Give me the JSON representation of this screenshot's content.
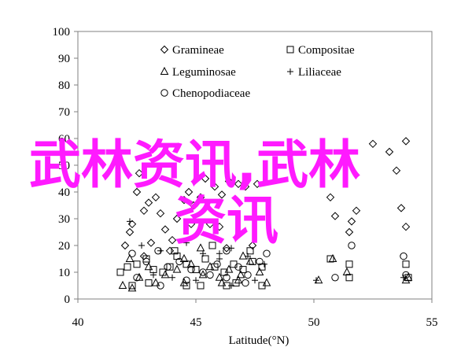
{
  "chart_data": {
    "type": "scatter",
    "xlabel": "Latitude(°N)",
    "ylabel": "",
    "xlim": [
      40,
      55
    ],
    "ylim": [
      0,
      100
    ],
    "xticks": [
      40,
      45,
      50,
      55
    ],
    "yticks": [
      0,
      10,
      20,
      30,
      40,
      50,
      60,
      70,
      80,
      90,
      100
    ],
    "grid": false,
    "legend_position": "top-center",
    "series": [
      {
        "name": "Gramineae",
        "marker": "diamond",
        "points": [
          [
            42.2,
            25
          ],
          [
            42.3,
            28
          ],
          [
            42.8,
            33
          ],
          [
            43.0,
            36
          ],
          [
            43.3,
            38
          ],
          [
            42.5,
            40
          ],
          [
            42.6,
            47
          ],
          [
            43.5,
            32
          ],
          [
            43.7,
            26
          ],
          [
            44.2,
            30
          ],
          [
            44.5,
            37
          ],
          [
            44.7,
            40
          ],
          [
            44.9,
            35
          ],
          [
            45.2,
            38
          ],
          [
            45.4,
            45
          ],
          [
            45.8,
            42
          ],
          [
            46.1,
            39
          ],
          [
            46.4,
            44
          ],
          [
            46.8,
            43
          ],
          [
            47.1,
            42
          ],
          [
            47.6,
            43
          ],
          [
            43.1,
            21
          ],
          [
            44.0,
            22
          ],
          [
            44.8,
            28
          ],
          [
            45.6,
            28
          ],
          [
            46.0,
            27
          ],
          [
            42.0,
            20
          ],
          [
            42.8,
            16
          ],
          [
            43.9,
            18
          ],
          [
            46.3,
            19
          ],
          [
            47.4,
            20
          ],
          [
            50.7,
            38
          ],
          [
            50.9,
            31
          ],
          [
            51.6,
            29
          ],
          [
            51.8,
            33
          ],
          [
            51.5,
            25
          ],
          [
            53.9,
            27
          ],
          [
            53.7,
            34
          ],
          [
            53.5,
            48
          ],
          [
            53.9,
            59
          ],
          [
            52.5,
            58
          ],
          [
            53.2,
            55
          ]
        ]
      },
      {
        "name": "Compositae",
        "marker": "square",
        "points": [
          [
            41.8,
            10
          ],
          [
            42.1,
            12
          ],
          [
            42.5,
            13
          ],
          [
            42.9,
            15
          ],
          [
            43.2,
            11
          ],
          [
            43.6,
            10
          ],
          [
            43.9,
            12
          ],
          [
            44.2,
            16
          ],
          [
            44.6,
            13
          ],
          [
            45.0,
            11
          ],
          [
            45.4,
            15
          ],
          [
            45.8,
            12
          ],
          [
            46.2,
            10
          ],
          [
            46.6,
            13
          ],
          [
            47.0,
            11
          ],
          [
            47.4,
            14
          ],
          [
            47.8,
            12
          ],
          [
            42.3,
            5
          ],
          [
            43.0,
            6
          ],
          [
            44.6,
            5
          ],
          [
            45.2,
            5
          ],
          [
            46.3,
            5
          ],
          [
            46.7,
            6
          ],
          [
            47.8,
            5
          ],
          [
            50.7,
            15
          ],
          [
            51.5,
            13
          ],
          [
            51.5,
            8
          ],
          [
            53.9,
            13
          ],
          [
            54.0,
            8
          ],
          [
            44.1,
            18
          ],
          [
            45.7,
            20
          ],
          [
            47.3,
            18
          ]
        ]
      },
      {
        "name": "Leguminosae",
        "marker": "triangle",
        "points": [
          [
            41.9,
            5
          ],
          [
            42.3,
            4
          ],
          [
            42.6,
            8
          ],
          [
            43.3,
            6
          ],
          [
            43.7,
            9
          ],
          [
            44.2,
            11
          ],
          [
            44.5,
            15
          ],
          [
            44.8,
            13
          ],
          [
            45.3,
            9
          ],
          [
            45.6,
            12
          ],
          [
            46.0,
            8
          ],
          [
            46.4,
            11
          ],
          [
            46.9,
            9
          ],
          [
            47.3,
            14
          ],
          [
            47.7,
            10
          ],
          [
            48.0,
            6
          ],
          [
            42.2,
            15
          ],
          [
            43.0,
            12
          ],
          [
            44.5,
            6
          ],
          [
            46.1,
            6
          ],
          [
            46.8,
            7
          ],
          [
            50.2,
            7
          ],
          [
            50.8,
            15
          ],
          [
            51.4,
            10
          ],
          [
            53.9,
            7
          ],
          [
            54.0,
            8
          ],
          [
            45.2,
            19
          ],
          [
            47.0,
            16
          ]
        ]
      },
      {
        "name": "Liliaceae",
        "marker": "plus",
        "points": [
          [
            42.2,
            29
          ],
          [
            42.7,
            20
          ],
          [
            43.5,
            18
          ],
          [
            44.6,
            21
          ],
          [
            45.3,
            17
          ],
          [
            46.0,
            15
          ],
          [
            46.5,
            19
          ],
          [
            47.2,
            16
          ],
          [
            47.9,
            13
          ],
          [
            43.2,
            9
          ],
          [
            44.0,
            8
          ],
          [
            45.0,
            7
          ],
          [
            46.5,
            5
          ],
          [
            47.5,
            7
          ],
          [
            50.1,
            7
          ],
          [
            53.8,
            8
          ],
          [
            46.0,
            17
          ]
        ]
      },
      {
        "name": "Chenopodiaceae",
        "marker": "circle",
        "points": [
          [
            42.3,
            17
          ],
          [
            42.9,
            14
          ],
          [
            43.4,
            18
          ],
          [
            43.8,
            12
          ],
          [
            44.3,
            14
          ],
          [
            44.8,
            11
          ],
          [
            45.3,
            10
          ],
          [
            45.9,
            13
          ],
          [
            46.3,
            18
          ],
          [
            46.8,
            12
          ],
          [
            47.2,
            9
          ],
          [
            47.7,
            14
          ],
          [
            48.0,
            17
          ],
          [
            42.5,
            8
          ],
          [
            43.5,
            5
          ],
          [
            44.6,
            7
          ],
          [
            45.6,
            9
          ],
          [
            46.3,
            8
          ],
          [
            47.1,
            6
          ],
          [
            50.9,
            8
          ],
          [
            51.6,
            20
          ],
          [
            53.8,
            16
          ],
          [
            53.9,
            9
          ]
        ]
      }
    ]
  },
  "watermark": {
    "line1": "武林资讯,武林",
    "line2": "资讯"
  }
}
